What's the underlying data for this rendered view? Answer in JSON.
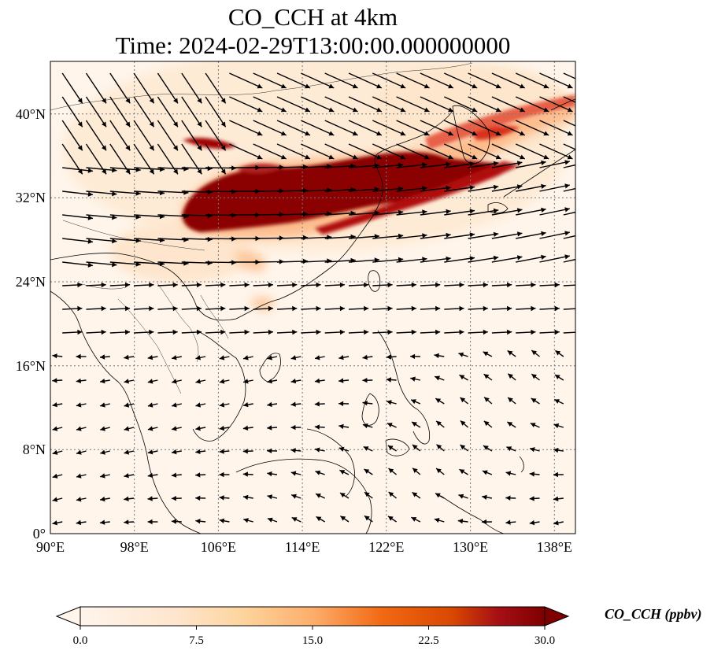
{
  "title": "CO_CCH at 4km",
  "subtitle": "Time: 2024-02-29T13:00:00.000000000",
  "lat_ticks": [
    "40°N",
    "32°N",
    "24°N",
    "16°N",
    "8°N",
    "0°"
  ],
  "lon_ticks": [
    "90°E",
    "98°E",
    "106°E",
    "114°E",
    "122°E",
    "130°E",
    "138°E"
  ],
  "extent": {
    "lon_min": 90,
    "lon_max": 140,
    "lat_min": 0,
    "lat_max": 45
  },
  "colorbar": {
    "label": "CO_CCH (ppbv)",
    "ticks": [
      "0.0",
      "7.5",
      "15.0",
      "22.5",
      "30.0"
    ],
    "min": 0,
    "max": 30,
    "colors": [
      "#fff5eb",
      "#fdd49e",
      "#fdae6b",
      "#e6550d",
      "#b30000",
      "#7f0000"
    ],
    "extend": "both"
  },
  "plume": {
    "peak_value_ppbv": 30,
    "core_path_lonlat": [
      [
        103,
        29.5
      ],
      [
        106,
        32
      ],
      [
        110,
        34
      ],
      [
        114,
        35
      ],
      [
        118,
        36
      ],
      [
        122,
        35
      ],
      [
        126,
        34.5
      ],
      [
        130,
        35.5
      ],
      [
        134,
        35
      ]
    ],
    "secondary_path_lonlat": [
      [
        113,
        28
      ],
      [
        118,
        29
      ],
      [
        122,
        31
      ],
      [
        126,
        33
      ],
      [
        130,
        35
      ],
      [
        135,
        38
      ],
      [
        140,
        41
      ]
    ]
  }
}
